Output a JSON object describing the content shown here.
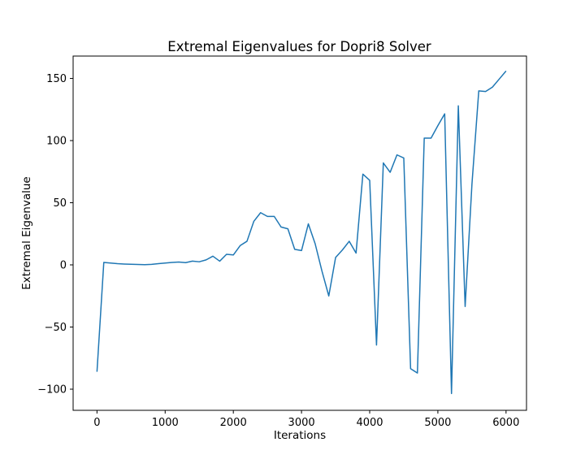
{
  "chart_data": {
    "type": "line",
    "title": "Extremal Eigenvalues for Dopri8 Solver",
    "xlabel": "Iterations",
    "ylabel": "Extremal Eigenvalue",
    "xlim": [
      -350,
      6300
    ],
    "ylim": [
      -117,
      168
    ],
    "xticks": [
      0,
      1000,
      2000,
      3000,
      4000,
      5000,
      6000
    ],
    "xtick_labels": [
      "0",
      "1000",
      "2000",
      "3000",
      "4000",
      "5000",
      "6000"
    ],
    "yticks": [
      -100,
      -50,
      0,
      50,
      100,
      150
    ],
    "ytick_labels": [
      "−100",
      "−50",
      "0",
      "50",
      "100",
      "150"
    ],
    "grid": false,
    "legend": "none",
    "series": [
      {
        "color": "#1f77b4",
        "x": [
          0,
          100,
          200,
          300,
          400,
          500,
          600,
          700,
          800,
          900,
          1000,
          1100,
          1200,
          1300,
          1400,
          1500,
          1600,
          1700,
          1800,
          1900,
          2000,
          2100,
          2200,
          2300,
          2400,
          2500,
          2600,
          2700,
          2800,
          2900,
          3000,
          3100,
          3200,
          3300,
          3400,
          3500,
          3600,
          3700,
          3800,
          3900,
          4000,
          4100,
          4200,
          4300,
          4400,
          4500,
          4600,
          4700,
          4800,
          4900,
          5000,
          5100,
          5200,
          5300,
          5400,
          5500,
          5600,
          5700,
          5800,
          5900,
          6000
        ],
        "y": [
          -86,
          2,
          1.5,
          1,
          0.7,
          0.5,
          0.3,
          0.2,
          0.4,
          1,
          1.5,
          2,
          2.3,
          1.8,
          3,
          2.5,
          4,
          7,
          3,
          8.5,
          8,
          15.5,
          19,
          35,
          42,
          39,
          39,
          30.5,
          29,
          12.5,
          11.5,
          33,
          17,
          -5,
          -25,
          6,
          12,
          19,
          9.5,
          73,
          68,
          -64.5,
          82,
          74.5,
          88.5,
          86,
          -83.5,
          -87,
          102,
          102,
          112,
          121.5,
          -103.5,
          128,
          -33.5,
          65,
          140,
          139.5,
          143,
          149.5,
          156
        ]
      }
    ]
  }
}
